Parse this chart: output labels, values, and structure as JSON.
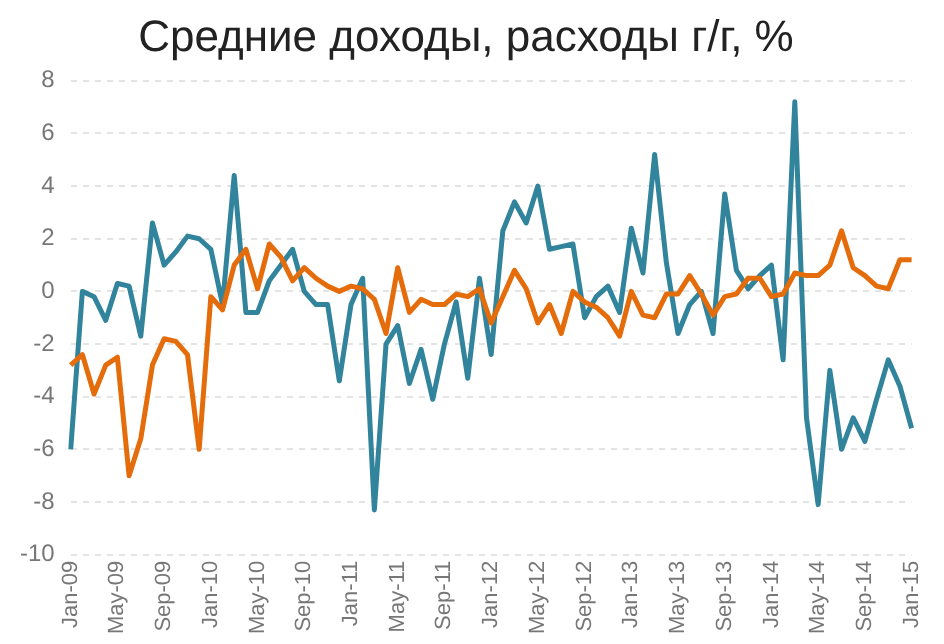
{
  "chart_data": {
    "type": "line",
    "title": "Средние доходы, расходы г/г, %",
    "categories": [
      "Jan-09",
      null,
      null,
      null,
      "May-09",
      null,
      null,
      null,
      "Sep-09",
      null,
      null,
      null,
      "Jan-10",
      null,
      null,
      null,
      "May-10",
      null,
      null,
      null,
      "Sep-10",
      null,
      null,
      null,
      "Jan-11",
      null,
      null,
      null,
      "May-11",
      null,
      null,
      null,
      "Sep-11",
      null,
      null,
      null,
      "Jan-12",
      null,
      null,
      null,
      "May-12",
      null,
      null,
      null,
      "Sep-12",
      null,
      null,
      null,
      "Jan-13",
      null,
      null,
      null,
      "May-13",
      null,
      null,
      null,
      "Sep-13",
      null,
      null,
      null,
      "Jan-14",
      null,
      null,
      null,
      "May-14",
      null,
      null,
      null,
      "Sep-14",
      null,
      null,
      null,
      "Jan-15"
    ],
    "series": [
      {
        "color": "#e46c0a",
        "values": [
          -2.8,
          -2.4,
          -3.9,
          -2.8,
          -2.5,
          -7.0,
          -5.6,
          -2.8,
          -1.8,
          -1.9,
          -2.4,
          -6.0,
          -0.2,
          -0.7,
          1.0,
          1.6,
          0.1,
          1.8,
          1.3,
          0.4,
          0.9,
          0.5,
          0.2,
          0.0,
          0.2,
          0.1,
          -0.3,
          -1.6,
          0.9,
          -0.8,
          -0.3,
          -0.5,
          -0.5,
          -0.1,
          -0.2,
          0.1,
          -1.2,
          -0.2,
          0.8,
          0.1,
          -1.2,
          -0.5,
          -1.6,
          0.0,
          -0.4,
          -0.6,
          -1.0,
          -1.7,
          0.0,
          -0.9,
          -1.0,
          -0.1,
          -0.1,
          0.6,
          -0.1,
          -0.9,
          -0.2,
          -0.1,
          0.5,
          0.5,
          -0.2,
          -0.1,
          0.7,
          0.6,
          0.6,
          1.0,
          2.3,
          0.9,
          0.6,
          0.2,
          0.1,
          1.2,
          1.2
        ]
      },
      {
        "color": "#31849b",
        "values": [
          -6.0,
          0.0,
          -0.2,
          -1.1,
          0.3,
          0.2,
          -1.7,
          2.6,
          1.0,
          1.5,
          2.1,
          2.0,
          1.6,
          -0.5,
          4.4,
          -0.8,
          -0.8,
          0.4,
          1.0,
          1.6,
          0.0,
          -0.5,
          -0.5,
          -3.4,
          -0.5,
          0.5,
          -8.3,
          -2.0,
          -1.3,
          -3.5,
          -2.2,
          -4.1,
          -2.0,
          -0.4,
          -3.3,
          0.5,
          -2.4,
          2.3,
          3.4,
          2.6,
          4.0,
          1.6,
          1.7,
          1.8,
          -1.0,
          -0.2,
          0.2,
          -0.8,
          2.4,
          0.7,
          5.2,
          1.1,
          -1.6,
          -0.5,
          0.0,
          -1.6,
          3.7,
          0.8,
          0.1,
          0.6,
          1.0,
          -2.6,
          7.2,
          -4.8,
          -8.1,
          -3.0,
          -6.0,
          -4.8,
          -5.7,
          -4.1,
          -2.6,
          -3.6,
          -5.2
        ]
      }
    ],
    "ylim": [
      -10,
      8
    ],
    "yticks": [
      -10,
      -8,
      -6,
      -4,
      -2,
      0,
      2,
      4,
      6,
      8
    ],
    "grid": "y",
    "legend": false,
    "marker": "none",
    "line_style": "solid"
  }
}
